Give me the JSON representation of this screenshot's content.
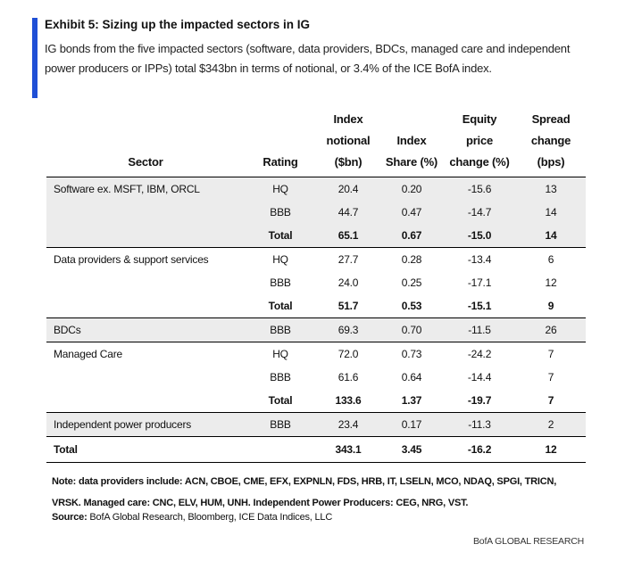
{
  "header": {
    "title": "Exhibit 5: Sizing up the impacted sectors in IG",
    "subtitle": "IG bonds from the five impacted sectors (software, data providers, BDCs, managed care and independent power producers or IPPs) total $343bn in terms of notional, or 3.4% of the ICE BofA index.",
    "accent_color": "#1f4fd6"
  },
  "table": {
    "columns": [
      {
        "key": "sector",
        "label": "Sector"
      },
      {
        "key": "rating",
        "label": "Rating"
      },
      {
        "key": "notional",
        "label_lines": [
          "Index",
          "notional",
          "($bn)"
        ]
      },
      {
        "key": "share",
        "label_lines": [
          "Index",
          "Share (%)"
        ]
      },
      {
        "key": "equity",
        "label_lines": [
          "Equity",
          "price",
          "change (%)"
        ]
      },
      {
        "key": "spread",
        "label_lines": [
          "Spread",
          "change",
          "(bps)"
        ]
      }
    ],
    "rows": [
      {
        "sector": "Software ex. MSFT, IBM, ORCL",
        "rating": "HQ",
        "notional": "20.4",
        "share": "0.20",
        "equity": "-15.6",
        "spread": "13",
        "shaded": true
      },
      {
        "sector": "",
        "rating": "BBB",
        "notional": "44.7",
        "share": "0.47",
        "equity": "-14.7",
        "spread": "14",
        "shaded": true
      },
      {
        "sector": "",
        "rating": "Total",
        "notional": "65.1",
        "share": "0.67",
        "equity": "-15.0",
        "spread": "14",
        "shaded": true,
        "bold": true,
        "group_end": true
      },
      {
        "sector": "Data providers & support services",
        "rating": "HQ",
        "notional": "27.7",
        "share": "0.28",
        "equity": "-13.4",
        "spread": "6"
      },
      {
        "sector": "",
        "rating": "BBB",
        "notional": "24.0",
        "share": "0.25",
        "equity": "-17.1",
        "spread": "12"
      },
      {
        "sector": "",
        "rating": "Total",
        "notional": "51.7",
        "share": "0.53",
        "equity": "-15.1",
        "spread": "9",
        "bold": true,
        "group_end": true
      },
      {
        "sector": "BDCs",
        "rating": "BBB",
        "notional": "69.3",
        "share": "0.70",
        "equity": "-11.5",
        "spread": "26",
        "shaded": true,
        "group_end": true
      },
      {
        "sector": "Managed Care",
        "rating": "HQ",
        "notional": "72.0",
        "share": "0.73",
        "equity": "-24.2",
        "spread": "7"
      },
      {
        "sector": "",
        "rating": "BBB",
        "notional": "61.6",
        "share": "0.64",
        "equity": "-14.4",
        "spread": "7"
      },
      {
        "sector": "",
        "rating": "Total",
        "notional": "133.6",
        "share": "1.37",
        "equity": "-19.7",
        "spread": "7",
        "bold": true,
        "group_end": true
      },
      {
        "sector": "Independent power producers",
        "rating": "BBB",
        "notional": "23.4",
        "share": "0.17",
        "equity": "-11.3",
        "spread": "2",
        "shaded": true,
        "group_end": true
      }
    ],
    "grand_total": {
      "sector": "Total",
      "rating": "",
      "notional": "343.1",
      "share": "3.45",
      "equity": "-16.2",
      "spread": "12"
    }
  },
  "note": "Note: data providers include: ACN, CBOE, CME, EFX, EXPNLN, FDS, HRB, IT, LSELN, MCO, NDAQ, SPGI, TRICN, VRSK. Managed care: CNC, ELV, HUM, UNH. Independent Power Producers: CEG, NRG, VST.",
  "source": {
    "label": "Source:",
    "text": " BofA Global Research, Bloomberg, ICE Data Indices, LLC"
  },
  "footer": "BofA GLOBAL RESEARCH"
}
